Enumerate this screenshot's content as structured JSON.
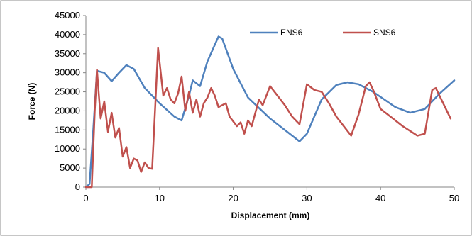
{
  "chart_data": {
    "type": "line",
    "xlabel": "Displacement (mm)",
    "ylabel": "Force (N)",
    "xlim": [
      0,
      50
    ],
    "ylim": [
      0,
      45000
    ],
    "x_ticks": [
      "0",
      "10",
      "20",
      "30",
      "40",
      "50"
    ],
    "y_ticks": [
      "0",
      "5000",
      "10000",
      "15000",
      "20000",
      "25000",
      "30000",
      "35000",
      "40000",
      "45000"
    ],
    "grid": false,
    "legend_position": "top-right",
    "series": [
      {
        "name": "ENS6",
        "color": "#4F81BD",
        "points": [
          [
            0,
            0
          ],
          [
            0.5,
            800
          ],
          [
            1.0,
            15000
          ],
          [
            1.5,
            30500
          ],
          [
            2.5,
            30000
          ],
          [
            3.5,
            27800
          ],
          [
            4.5,
            30000
          ],
          [
            5.5,
            32000
          ],
          [
            6.5,
            31000
          ],
          [
            8,
            26000
          ],
          [
            10,
            22000
          ],
          [
            12,
            18500
          ],
          [
            13,
            17500
          ],
          [
            14,
            24000
          ],
          [
            14.5,
            28000
          ],
          [
            15.5,
            26500
          ],
          [
            16.5,
            33000
          ],
          [
            18,
            39500
          ],
          [
            18.5,
            39000
          ],
          [
            20,
            31000
          ],
          [
            22,
            23500
          ],
          [
            25,
            18000
          ],
          [
            29,
            12000
          ],
          [
            30,
            14000
          ],
          [
            32,
            23000
          ],
          [
            34,
            26800
          ],
          [
            35.5,
            27500
          ],
          [
            37,
            27000
          ],
          [
            39,
            25000
          ],
          [
            42,
            21000
          ],
          [
            44,
            19500
          ],
          [
            46,
            20500
          ],
          [
            48,
            24500
          ],
          [
            50,
            28000
          ]
        ]
      },
      {
        "name": "SNS6",
        "color": "#C0504D",
        "points": [
          [
            0,
            0
          ],
          [
            0.8,
            0
          ],
          [
            1.2,
            20000
          ],
          [
            1.5,
            30800
          ],
          [
            2.0,
            18000
          ],
          [
            2.5,
            22500
          ],
          [
            3.0,
            14500
          ],
          [
            3.5,
            19500
          ],
          [
            4.0,
            13000
          ],
          [
            4.5,
            15500
          ],
          [
            5.0,
            8000
          ],
          [
            5.5,
            10500
          ],
          [
            6.0,
            5000
          ],
          [
            6.5,
            7500
          ],
          [
            7.0,
            7000
          ],
          [
            7.5,
            4000
          ],
          [
            8.0,
            6500
          ],
          [
            8.5,
            5000
          ],
          [
            9.0,
            4800
          ],
          [
            9.8,
            36500
          ],
          [
            10.5,
            24000
          ],
          [
            11,
            26000
          ],
          [
            11.5,
            23000
          ],
          [
            12,
            22000
          ],
          [
            12.5,
            24500
          ],
          [
            13,
            29000
          ],
          [
            13.5,
            20000
          ],
          [
            14,
            25000
          ],
          [
            14.5,
            19500
          ],
          [
            15,
            23000
          ],
          [
            15.5,
            18500
          ],
          [
            16,
            22000
          ],
          [
            16.5,
            23500
          ],
          [
            17,
            26000
          ],
          [
            17.5,
            24000
          ],
          [
            18,
            21000
          ],
          [
            19,
            22000
          ],
          [
            19.5,
            18500
          ],
          [
            20.5,
            16000
          ],
          [
            21,
            17000
          ],
          [
            21.5,
            14000
          ],
          [
            22,
            17500
          ],
          [
            22.5,
            16000
          ],
          [
            23.5,
            23000
          ],
          [
            24,
            21500
          ],
          [
            25,
            26500
          ],
          [
            26,
            24000
          ],
          [
            27,
            21500
          ],
          [
            28,
            18500
          ],
          [
            29,
            16500
          ],
          [
            30,
            27000
          ],
          [
            31,
            25500
          ],
          [
            32,
            25000
          ],
          [
            33,
            22000
          ],
          [
            34,
            18500
          ],
          [
            35,
            16000
          ],
          [
            36,
            13500
          ],
          [
            37,
            19000
          ],
          [
            38,
            26500
          ],
          [
            38.5,
            27500
          ],
          [
            39,
            25500
          ],
          [
            40,
            20500
          ],
          [
            41,
            19000
          ],
          [
            43,
            16000
          ],
          [
            45,
            13500
          ],
          [
            46,
            14000
          ],
          [
            47,
            25500
          ],
          [
            47.5,
            26000
          ],
          [
            48.5,
            22000
          ],
          [
            49.5,
            18000
          ]
        ]
      }
    ]
  }
}
